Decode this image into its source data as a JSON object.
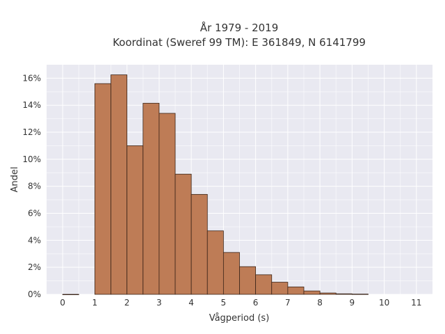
{
  "chart_data": {
    "type": "bar",
    "title_line1": "År 1979 - 2019",
    "title_line2": "Koordinat (Sweref 99 TM): E 361849, N 6141799",
    "xlabel": "Vågperiod (s)",
    "ylabel": "Andel",
    "bin_width": 0.5,
    "bin_starts": [
      0,
      0.5,
      1,
      1.5,
      2,
      2.5,
      3,
      3.5,
      4,
      4.5,
      5,
      5.5,
      6,
      6.5,
      7,
      7.5,
      8,
      8.5,
      9,
      9.5,
      10,
      10.5
    ],
    "values": [
      0.0005,
      0,
      15.6,
      16.25,
      11.0,
      14.15,
      13.4,
      8.9,
      7.4,
      4.7,
      3.1,
      2.05,
      1.45,
      0.9,
      0.55,
      0.25,
      0.1,
      0.04,
      0.02,
      0,
      0,
      0
    ],
    "xlim": [
      -0.5,
      11.5
    ],
    "ylim": [
      0,
      17
    ],
    "x_ticks": [
      0,
      1,
      2,
      3,
      4,
      5,
      6,
      7,
      8,
      9,
      10,
      11
    ],
    "y_ticks": [
      0,
      2,
      4,
      6,
      8,
      10,
      12,
      14,
      16
    ],
    "y_tick_labels": [
      "0%",
      "2%",
      "4%",
      "6%",
      "8%",
      "10%",
      "12%",
      "14%",
      "16%"
    ],
    "grid": true,
    "colors": {
      "bar": "#BE7C56",
      "plot_bg": "#E9E9F1",
      "grid": "#FFFFFF"
    }
  }
}
